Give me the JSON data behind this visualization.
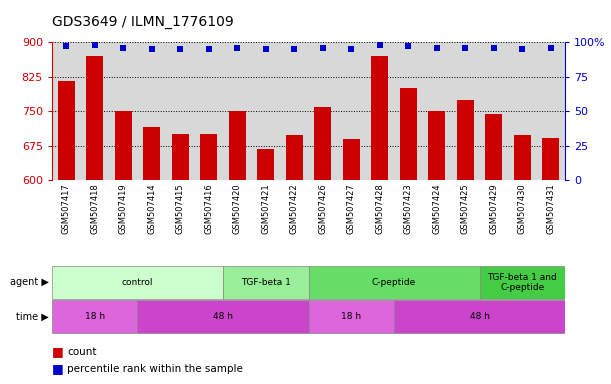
{
  "title": "GDS3649 / ILMN_1776109",
  "samples": [
    "GSM507417",
    "GSM507418",
    "GSM507419",
    "GSM507414",
    "GSM507415",
    "GSM507416",
    "GSM507420",
    "GSM507421",
    "GSM507422",
    "GSM507426",
    "GSM507427",
    "GSM507428",
    "GSM507423",
    "GSM507424",
    "GSM507425",
    "GSM507429",
    "GSM507430",
    "GSM507431"
  ],
  "counts": [
    815,
    870,
    750,
    715,
    700,
    700,
    750,
    668,
    698,
    760,
    690,
    870,
    800,
    750,
    775,
    745,
    698,
    693
  ],
  "percentiles": [
    97,
    98,
    96,
    95,
    95,
    95,
    96,
    95,
    95,
    96,
    95,
    98,
    97,
    96,
    96,
    96,
    95,
    96
  ],
  "ylim_left": [
    600,
    900
  ],
  "ylim_right": [
    0,
    100
  ],
  "yticks_left": [
    600,
    675,
    750,
    825,
    900
  ],
  "yticks_right": [
    0,
    25,
    50,
    75,
    100
  ],
  "bar_color": "#cc0000",
  "dot_color": "#0000cc",
  "agent_groups": [
    {
      "label": "control",
      "start": 0,
      "end": 6,
      "color": "#ccffcc"
    },
    {
      "label": "TGF-beta 1",
      "start": 6,
      "end": 9,
      "color": "#99ee99"
    },
    {
      "label": "C-peptide",
      "start": 9,
      "end": 15,
      "color": "#66dd66"
    },
    {
      "label": "TGF-beta 1 and\nC-peptide",
      "start": 15,
      "end": 18,
      "color": "#44cc44"
    }
  ],
  "time_groups": [
    {
      "label": "18 h",
      "start": 0,
      "end": 3,
      "color": "#dd66dd"
    },
    {
      "label": "48 h",
      "start": 3,
      "end": 9,
      "color": "#cc44cc"
    },
    {
      "label": "18 h",
      "start": 9,
      "end": 12,
      "color": "#dd66dd"
    },
    {
      "label": "48 h",
      "start": 12,
      "end": 18,
      "color": "#cc44cc"
    }
  ],
  "bg_color": "#ffffff",
  "grid_color": "#000000",
  "left_axis_color": "#cc0000",
  "right_axis_color": "#0000cc",
  "tick_bg_color": "#d8d8d8"
}
